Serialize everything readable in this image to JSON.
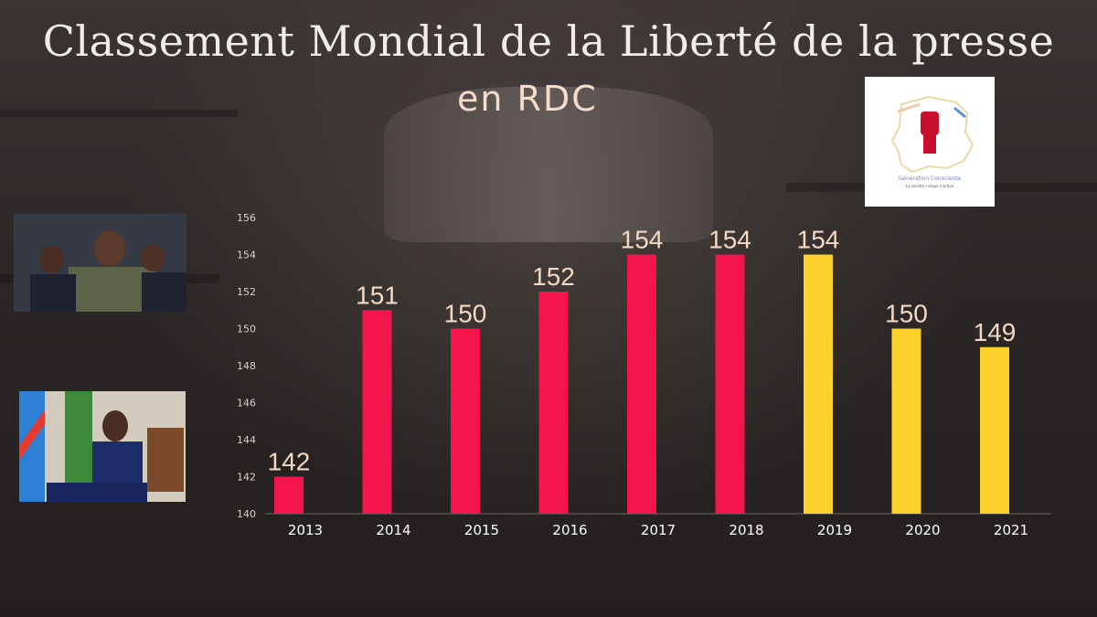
{
  "header": {
    "title": "Classement Mondial de la Liberté de la presse",
    "subtitle": "en RDC"
  },
  "logo": {
    "name": "Génération Consciente",
    "tagline": "La société civique s'active"
  },
  "colors": {
    "bar_primary": "#f4154d",
    "bar_secondary": "#fed02c",
    "title": "#f1ece8",
    "value_label": "#f3d9c4"
  },
  "chart_data": {
    "type": "bar",
    "title": "Classement Mondial de la Liberté de la presse en RDC",
    "xlabel": "",
    "ylabel": "",
    "categories": [
      "2013",
      "2014",
      "2015",
      "2016",
      "2017",
      "2018",
      "2019",
      "2020",
      "2021"
    ],
    "values": [
      142,
      151,
      150,
      152,
      154,
      154,
      154,
      150,
      149
    ],
    "bar_colors": [
      "#f4154d",
      "#f4154d",
      "#f4154d",
      "#f4154d",
      "#f4154d",
      "#f4154d",
      "#fed02c",
      "#fed02c",
      "#fed02c"
    ],
    "ylim": [
      140,
      156
    ],
    "yticks": [
      140,
      142,
      144,
      146,
      148,
      150,
      152,
      154,
      156
    ],
    "grid": false,
    "data_labels": true
  }
}
